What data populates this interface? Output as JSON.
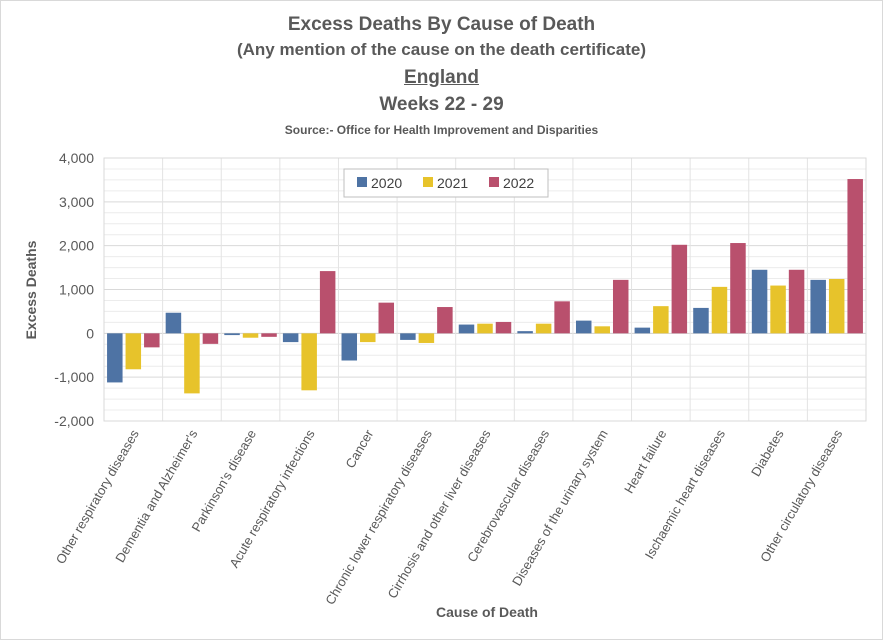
{
  "chart_data": {
    "type": "bar",
    "title": "Excess Deaths By Cause of Death",
    "subtitle": "(Any mention of the cause on the death certificate)",
    "region": "England",
    "period": "Weeks 22 - 29",
    "source": "Source:- Office for Health Improvement and Disparities",
    "xlabel": "Cause of Death",
    "ylabel": "Excess Deaths",
    "ylim": [
      -2000,
      4000
    ],
    "yticks": [
      -2000,
      -1000,
      0,
      1000,
      2000,
      3000,
      4000
    ],
    "ytick_labels": [
      "-2,000",
      "-1,000",
      "0",
      "1,000",
      "2,000",
      "3,000",
      "4,000"
    ],
    "grid": true,
    "legend_position": "top-center",
    "categories": [
      "Other respiratory diseases",
      "Dementia and Alzheimer's",
      "Parkinson's disease",
      "Acute respiratory infections",
      "Cancer",
      "Chronic lower respiratory diseases",
      "Cirrhosis and other liver diseases",
      "Cerebrovascular diseases",
      "Diseases of the urinary system",
      "Heart failure",
      "Ischaemic heart diseases",
      "Diabetes",
      "Other circulatory diseases"
    ],
    "series": [
      {
        "name": "2020",
        "color": "#4e73a4",
        "values": [
          -1120,
          470,
          -40,
          -200,
          -620,
          -150,
          200,
          50,
          290,
          130,
          580,
          1450,
          1220
        ]
      },
      {
        "name": "2021",
        "color": "#e7c32b",
        "values": [
          -820,
          -1370,
          -100,
          -1300,
          -200,
          -220,
          220,
          220,
          160,
          620,
          1060,
          1090,
          1240
        ]
      },
      {
        "name": "2022",
        "color": "#b9506d",
        "values": [
          -320,
          -240,
          -80,
          1420,
          700,
          600,
          260,
          730,
          1220,
          2020,
          2060,
          1450,
          3520
        ]
      }
    ]
  }
}
